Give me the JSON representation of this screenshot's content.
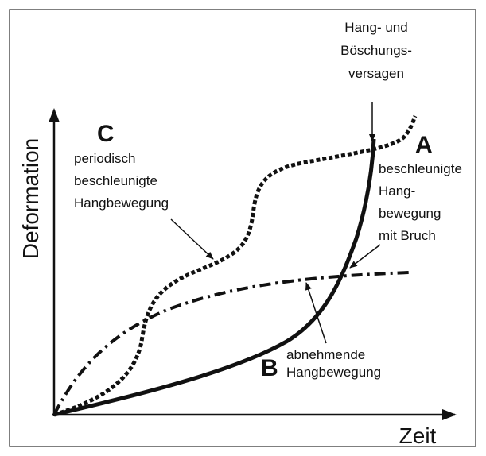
{
  "diagram": {
    "y_axis_label": "Deformation",
    "x_axis_label": "Zeit",
    "failure_note": [
      "Hang- und",
      "Böschungs-",
      "versagen"
    ],
    "curves": [
      {
        "letter": "A",
        "description": [
          "beschleunigte",
          "Hang-",
          "bewegung",
          "mit Bruch"
        ]
      },
      {
        "letter": "B",
        "description": [
          "abnehmende",
          "Hangbewegung"
        ]
      },
      {
        "letter": "C",
        "description": [
          "periodisch",
          "beschleunigte",
          "Hangbewegung"
        ]
      }
    ]
  }
}
